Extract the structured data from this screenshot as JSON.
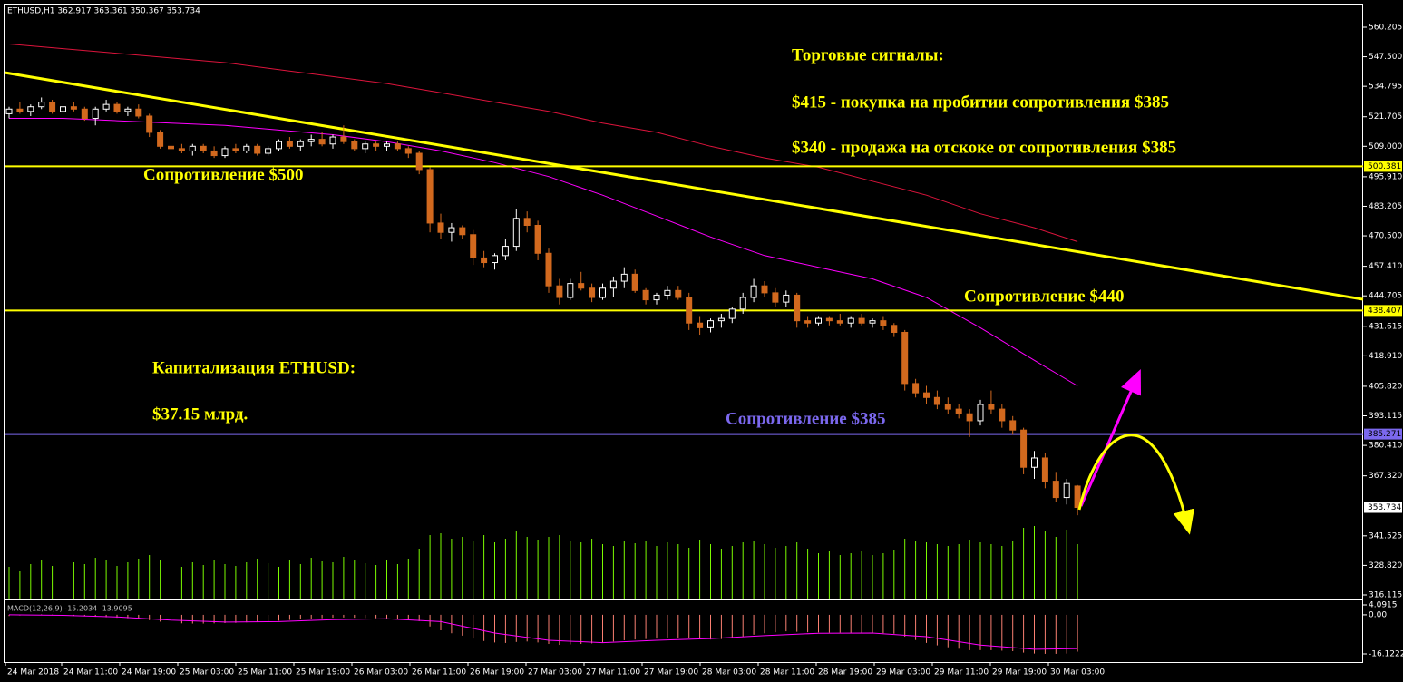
{
  "chart_data": {
    "type": "candlestick",
    "title": "ETHUSD,H1  362.917 363.361 350.367 353.734",
    "ylim": [
      314.55,
      564.88
    ],
    "yticks": [
      560.205,
      {
        "value": 547.5,
        "label": "547.500"
      },
      534.795,
      521.705,
      {
        "value": 509,
        "label": "509.000"
      },
      {
        "value": 495.91,
        "label": "495.910"
      },
      483.205,
      {
        "value": 470.5,
        "label": "470.500"
      },
      {
        "value": 457.41,
        "label": "457.410"
      },
      444.705,
      431.615,
      {
        "value": 418.91,
        "label": "418.910"
      },
      {
        "value": 405.82,
        "label": "405.820"
      },
      393.115,
      {
        "value": 380.41,
        "label": "380.410"
      },
      {
        "value": 367.32,
        "label": "367.320"
      },
      341.525,
      {
        "value": 328.82,
        "label": "328.820"
      },
      316.115
    ],
    "categories": [
      "24 Mar 2018",
      "24 Mar 11:00",
      "24 Mar 19:00",
      "25 Mar 03:00",
      "25 Mar 11:00",
      "25 Mar 19:00",
      "26 Mar 03:00",
      "26 Mar 11:00",
      "26 Mar 19:00",
      "27 Mar 03:00",
      "27 Mar 11:00",
      "27 Mar 19:00",
      "28 Mar 03:00",
      "28 Mar 11:00",
      "28 Mar 19:00",
      "29 Mar 03:00",
      "29 Mar 11:00",
      "29 Mar 19:00",
      "30 Mar 03:00"
    ],
    "bull_color": "#ffffff",
    "bear_color": "#d2691e",
    "candles": [
      [
        523,
        526,
        521,
        525
      ],
      [
        525,
        528,
        523,
        524
      ],
      [
        524,
        527,
        522,
        526
      ],
      [
        526,
        530,
        525,
        528
      ],
      [
        528,
        529,
        523,
        524
      ],
      [
        524,
        527,
        522,
        526
      ],
      [
        526,
        528,
        524,
        525
      ],
      [
        525,
        526,
        520,
        521
      ],
      [
        521,
        526,
        518,
        525
      ],
      [
        525,
        529,
        524,
        527
      ],
      [
        527,
        528,
        523,
        524
      ],
      [
        524,
        526,
        522,
        525
      ],
      [
        525,
        527,
        521,
        522
      ],
      [
        522,
        523,
        513,
        515
      ],
      [
        515,
        516,
        508,
        509
      ],
      [
        509,
        511,
        506,
        508
      ],
      [
        508,
        510,
        506,
        507
      ],
      [
        507,
        510,
        505,
        509
      ],
      [
        509,
        510,
        506,
        507
      ],
      [
        507,
        509,
        504,
        505
      ],
      [
        505,
        509,
        504,
        508
      ],
      [
        508,
        510,
        506,
        507
      ],
      [
        507,
        510,
        506,
        509
      ],
      [
        509,
        510,
        505,
        506
      ],
      [
        506,
        509,
        505,
        508
      ],
      [
        508,
        512,
        507,
        511
      ],
      [
        511,
        513,
        508,
        509
      ],
      [
        509,
        512,
        507,
        511
      ],
      [
        511,
        514,
        509,
        512
      ],
      [
        512,
        515,
        509,
        510
      ],
      [
        510,
        514,
        508,
        513
      ],
      [
        513,
        518,
        510,
        511
      ],
      [
        511,
        512,
        507,
        508
      ],
      [
        508,
        511,
        506,
        510
      ],
      [
        510,
        511,
        507,
        509
      ],
      [
        509,
        511,
        507,
        510
      ],
      [
        510,
        511,
        507,
        508
      ],
      [
        508,
        509,
        504,
        506
      ],
      [
        506,
        507,
        497,
        499
      ],
      [
        499,
        500,
        472,
        476
      ],
      [
        476,
        480,
        469,
        472
      ],
      [
        472,
        476,
        468,
        474
      ],
      [
        474,
        475,
        469,
        471
      ],
      [
        471,
        473,
        458,
        461
      ],
      [
        461,
        464,
        457,
        459
      ],
      [
        459,
        463,
        456,
        462
      ],
      [
        462,
        469,
        460,
        466
      ],
      [
        466,
        482,
        464,
        478
      ],
      [
        478,
        481,
        472,
        475
      ],
      [
        475,
        477,
        460,
        463
      ],
      [
        463,
        465,
        446,
        449
      ],
      [
        449,
        452,
        441,
        444
      ],
      [
        444,
        452,
        443,
        450
      ],
      [
        450,
        455,
        447,
        448
      ],
      [
        448,
        450,
        442,
        444
      ],
      [
        444,
        450,
        443,
        448
      ],
      [
        448,
        453,
        444,
        451
      ],
      [
        451,
        457,
        448,
        454
      ],
      [
        454,
        456,
        446,
        447
      ],
      [
        447,
        448,
        441,
        443
      ],
      [
        443,
        446,
        441,
        445
      ],
      [
        445,
        449,
        443,
        447
      ],
      [
        447,
        449,
        443,
        444
      ],
      [
        444,
        446,
        430,
        433
      ],
      [
        433,
        436,
        428,
        431
      ],
      [
        431,
        435,
        429,
        434
      ],
      [
        434,
        437,
        431,
        435
      ],
      [
        435,
        440,
        433,
        439
      ],
      [
        439,
        446,
        437,
        444
      ],
      [
        444,
        452,
        442,
        449
      ],
      [
        449,
        451,
        444,
        446
      ],
      [
        446,
        448,
        440,
        442
      ],
      [
        442,
        447,
        440,
        445
      ],
      [
        445,
        446,
        431,
        434
      ],
      [
        434,
        436,
        431,
        433
      ],
      [
        433,
        436,
        432,
        435
      ],
      [
        435,
        436,
        432,
        434
      ],
      [
        434,
        437,
        432,
        433
      ],
      [
        433,
        436,
        431,
        435
      ],
      [
        435,
        437,
        432,
        433
      ],
      [
        433,
        435,
        431,
        434
      ],
      [
        434,
        436,
        430,
        432
      ],
      [
        432,
        433,
        427,
        429
      ],
      [
        429,
        430,
        404,
        407
      ],
      [
        407,
        409,
        401,
        403
      ],
      [
        403,
        406,
        398,
        401
      ],
      [
        401,
        404,
        396,
        398
      ],
      [
        398,
        401,
        394,
        396
      ],
      [
        396,
        398,
        392,
        394
      ],
      [
        394,
        396,
        384,
        391
      ],
      [
        391,
        400,
        389,
        398
      ],
      [
        398,
        404,
        394,
        396
      ],
      [
        396,
        398,
        388,
        391
      ],
      [
        391,
        393,
        385,
        387
      ],
      [
        387,
        388,
        368,
        371
      ],
      [
        371,
        378,
        366,
        375
      ],
      [
        375,
        377,
        362,
        365
      ],
      [
        365,
        369,
        356,
        358
      ],
      [
        358,
        366,
        355,
        364
      ],
      [
        362.917,
        363.361,
        350.367,
        353.734
      ]
    ],
    "volume_color": "#7cfc00",
    "volumes": [
      35,
      30,
      38,
      42,
      36,
      44,
      40,
      38,
      45,
      42,
      36,
      40,
      44,
      48,
      42,
      38,
      35,
      40,
      37,
      42,
      38,
      36,
      40,
      44,
      39,
      35,
      42,
      38,
      45,
      41,
      40,
      46,
      43,
      39,
      37,
      42,
      38,
      44,
      55,
      70,
      72,
      66,
      68,
      64,
      70,
      62,
      66,
      74,
      68,
      65,
      68,
      70,
      64,
      62,
      66,
      60,
      58,
      63,
      61,
      64,
      58,
      62,
      60,
      56,
      65,
      60,
      55,
      58,
      62,
      64,
      60,
      56,
      58,
      62,
      55,
      50,
      52,
      48,
      50,
      52,
      48,
      50,
      54,
      66,
      64,
      62,
      60,
      58,
      60,
      65,
      62,
      60,
      58,
      64,
      78,
      80,
      74,
      68,
      76,
      60
    ],
    "moving_averages": [
      {
        "color": "#dc143c",
        "x": [
          0,
          5,
          10,
          15,
          20,
          25,
          30,
          35,
          40,
          45,
          50,
          55,
          60,
          65,
          70,
          75,
          80,
          85,
          90,
          95,
          99
        ],
        "values": [
          553,
          551,
          549,
          547,
          545,
          542,
          539,
          536,
          532,
          528,
          524,
          519,
          515,
          509,
          504,
          500,
          494,
          488,
          480,
          474,
          468
        ]
      },
      {
        "color": "#ff00ff",
        "x": [
          0,
          5,
          10,
          15,
          20,
          25,
          30,
          35,
          40,
          45,
          50,
          55,
          60,
          65,
          70,
          75,
          80,
          85,
          90,
          95,
          99
        ],
        "values": [
          521,
          521,
          520,
          519,
          518,
          516,
          514,
          511,
          507,
          502,
          496,
          488,
          479,
          470,
          462,
          457,
          452,
          444,
          431,
          417,
          406
        ]
      }
    ],
    "trendline": {
      "color": "#ffff00",
      "values": [
        540.7,
        443.2
      ]
    },
    "levels": [
      {
        "value": 500.381,
        "color": "#ffff00"
      },
      {
        "value": 438.407,
        "color": "#ffff00"
      },
      {
        "value": 385.271,
        "color": "#7b68ee"
      }
    ],
    "annotations": [
      {
        "text": "Торговые сигналы:",
        "color": "#ffff00"
      },
      {
        "text": "$415 - покупка на пробитии сопротивления $385",
        "color": "#ffff00"
      },
      {
        "text": "$340 - продажа на отскоке от сопротивления $385",
        "color": "#ffff00"
      },
      {
        "text": "Сопротивление $500",
        "color": "#ffff00"
      },
      {
        "text": "Сопротивление $440",
        "color": "#ffff00"
      },
      {
        "text": "Капитализация ETHUSD:",
        "color": "#ffff00"
      },
      {
        "text": "$37.15 млрд.",
        "color": "#ffff00"
      },
      {
        "text": "Сопротивление $385",
        "color": "#7b68ee"
      }
    ],
    "macd": {
      "title": "MACD(12,26,9) -15.2034 -13.9095",
      "ylim": [
        -21.37,
        5.59
      ],
      "yticks": [
        4.0915,
        {
          "value": 0,
          "label": "0.00"
        },
        -16.1222
      ],
      "histogram_color": "#fa8072",
      "histogram": [
        -0.5,
        -0.3,
        0,
        0.2,
        0.1,
        -0.2,
        -0.4,
        -0.6,
        -0.8,
        -1.0,
        -1.2,
        -1.4,
        -1.6,
        -2.2,
        -2.8,
        -3.2,
        -3.5,
        -3.6,
        -3.6,
        -3.5,
        -3.4,
        -3.3,
        -3.1,
        -2.9,
        -2.7,
        -2.4,
        -2.1,
        -1.9,
        -1.6,
        -1.4,
        -1.2,
        -1.1,
        -1.2,
        -1.3,
        -1.4,
        -1.5,
        -1.6,
        -1.8,
        -2.6,
        -4.8,
        -6.4,
        -7.6,
        -8.6,
        -9.8,
        -10.8,
        -11.4,
        -11.6,
        -11.2,
        -11.0,
        -11.4,
        -12.0,
        -12.4,
        -12.2,
        -12.0,
        -11.8,
        -11.4,
        -11.0,
        -10.5,
        -10.2,
        -10.0,
        -9.8,
        -9.6,
        -9.4,
        -9.6,
        -10.0,
        -10.2,
        -10.0,
        -9.6,
        -9.0,
        -8.2,
        -7.6,
        -7.2,
        -6.8,
        -7.0,
        -7.2,
        -7.3,
        -7.4,
        -7.4,
        -7.5,
        -7.5,
        -7.6,
        -7.6,
        -7.8,
        -9.0,
        -10.4,
        -11.6,
        -12.6,
        -13.4,
        -14.0,
        -14.6,
        -14.6,
        -14.6,
        -14.8,
        -15.0,
        -15.6,
        -16.0,
        -16.1,
        -16.1,
        -16.0,
        -15.2034
      ],
      "signal_color": "#ff00ff",
      "signal_x": [
        0,
        5,
        10,
        15,
        20,
        25,
        30,
        35,
        40,
        45,
        50,
        55,
        60,
        65,
        70,
        75,
        80,
        85,
        90,
        95,
        99
      ],
      "signal": [
        0.0,
        -0.2,
        -0.9,
        -2.2,
        -3.0,
        -2.8,
        -2.0,
        -1.6,
        -2.8,
        -7.5,
        -10.5,
        -11.5,
        -10.5,
        -9.8,
        -8.6,
        -7.6,
        -7.5,
        -9.0,
        -12.5,
        -14.2,
        -13.9095
      ]
    }
  }
}
